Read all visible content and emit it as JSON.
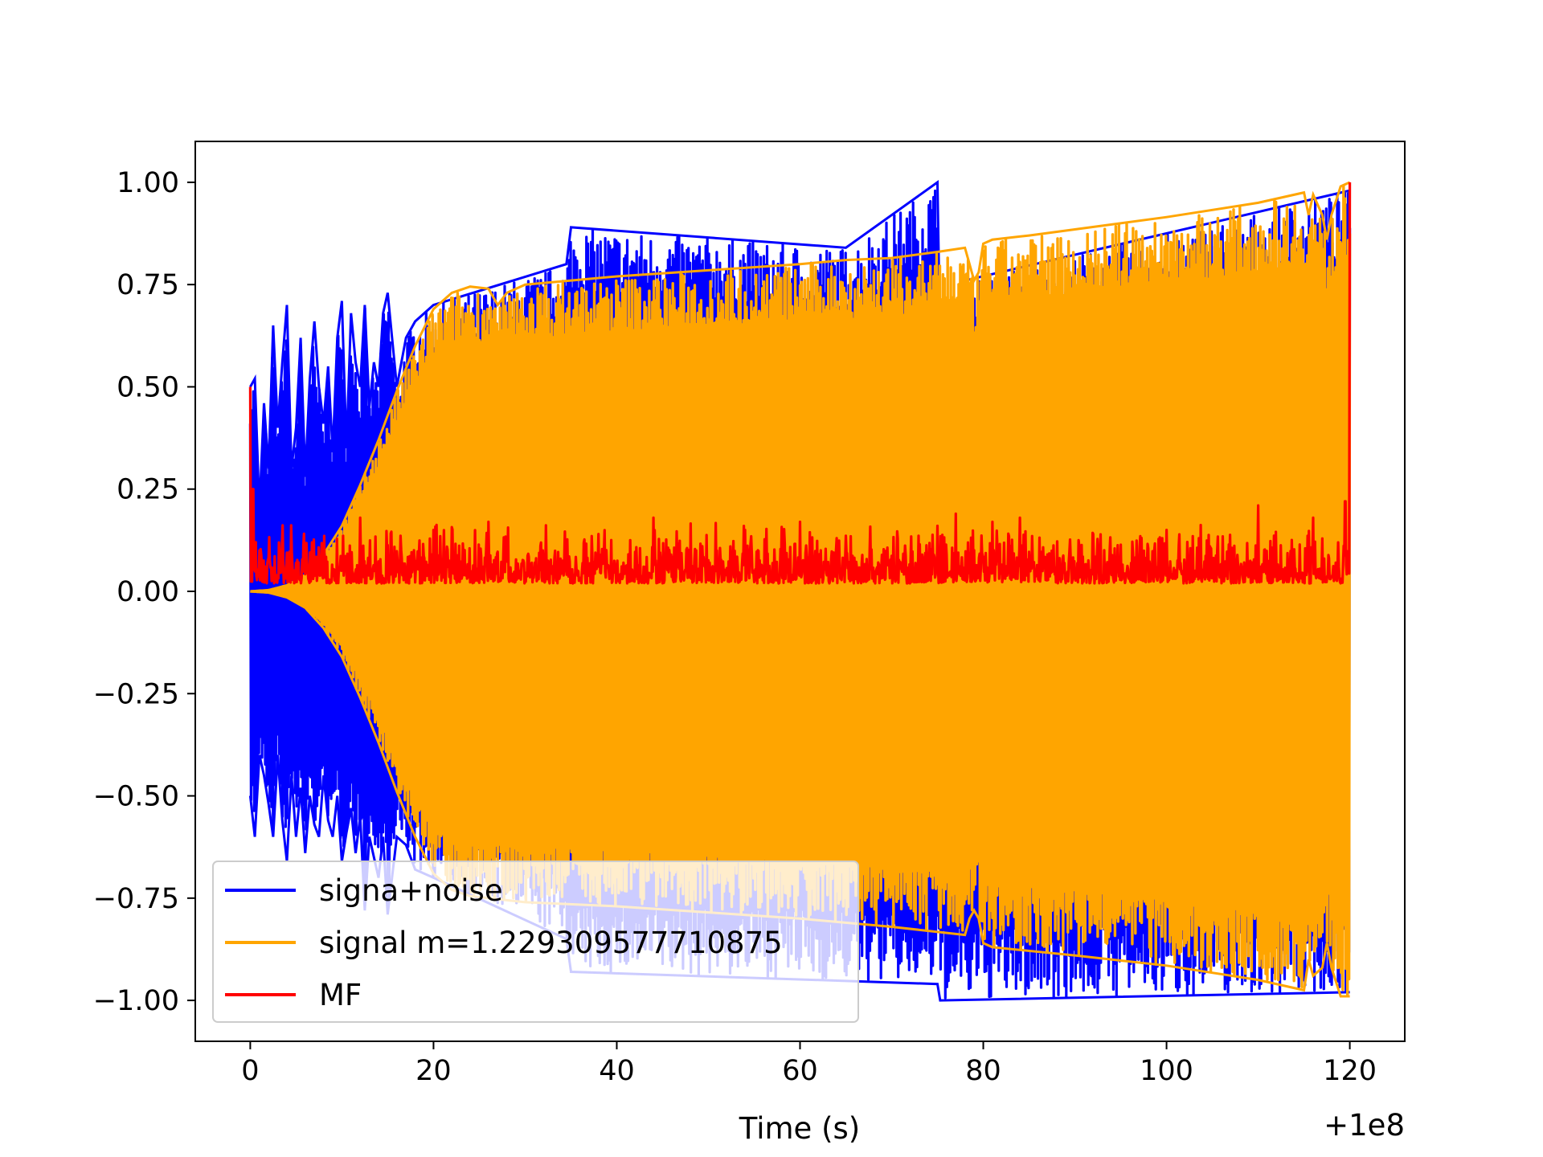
{
  "chart_data": {
    "type": "line",
    "title": "",
    "xlabel": "Time (s)",
    "ylabel": "",
    "x_offset_label": "+1e8",
    "xlim": [
      -6,
      126
    ],
    "ylim": [
      -1.1,
      1.1
    ],
    "x_ticks": [
      {
        "value": 0,
        "label": "0"
      },
      {
        "value": 20,
        "label": "20"
      },
      {
        "value": 40,
        "label": "40"
      },
      {
        "value": 60,
        "label": "60"
      },
      {
        "value": 80,
        "label": "80"
      },
      {
        "value": 100,
        "label": "100"
      },
      {
        "value": 120,
        "label": "120"
      }
    ],
    "y_ticks": [
      {
        "value": 1.0,
        "label": "1.00"
      },
      {
        "value": 0.75,
        "label": "0.75"
      },
      {
        "value": 0.5,
        "label": "0.50"
      },
      {
        "value": 0.25,
        "label": "0.25"
      },
      {
        "value": 0.0,
        "label": "0.00"
      },
      {
        "value": -0.25,
        "label": "−0.25"
      },
      {
        "value": -0.5,
        "label": "−0.50"
      },
      {
        "value": -0.75,
        "label": "−0.75"
      },
      {
        "value": -1.0,
        "label": "−1.00"
      }
    ],
    "grid": false,
    "legend_position": "lower-left",
    "series": [
      {
        "name": "signa+noise",
        "color": "#0000ff",
        "envelope_upper": {
          "x": [
            0,
            0.5,
            1,
            1.5,
            2,
            2.5,
            3,
            3.5,
            4,
            4.5,
            5,
            5.5,
            6,
            6.5,
            7,
            7.5,
            8,
            8.5,
            9,
            9.5,
            10,
            10.5,
            11,
            11.5,
            12,
            12.5,
            13,
            13.5,
            14,
            14.5,
            15,
            16,
            17,
            18,
            20,
            34.5,
            35,
            65,
            75,
            75.3,
            78,
            120
          ],
          "y": [
            0.5,
            0.52,
            0.2,
            0.46,
            0.3,
            0.65,
            0.4,
            0.56,
            0.7,
            0.3,
            0.4,
            0.62,
            0.28,
            0.52,
            0.66,
            0.5,
            0.41,
            0.55,
            0.34,
            0.62,
            0.71,
            0.35,
            0.68,
            0.56,
            0.5,
            0.7,
            0.45,
            0.56,
            0.5,
            0.68,
            0.73,
            0.5,
            0.62,
            0.66,
            0.7,
            0.8,
            0.89,
            0.84,
            1.0,
            0.6,
            0.76,
            0.98
          ]
        },
        "envelope_lower": {
          "x": [
            0,
            0.5,
            1,
            1.5,
            2,
            2.5,
            3,
            3.5,
            4,
            4.5,
            5,
            5.5,
            6,
            6.5,
            7,
            7.5,
            8,
            8.5,
            9,
            9.5,
            10,
            10.5,
            11,
            11.5,
            12,
            12.5,
            13,
            13.5,
            14,
            14.5,
            15,
            16,
            17,
            18,
            20,
            34.5,
            35,
            75,
            75.3,
            120
          ],
          "y": [
            -0.5,
            -0.6,
            -0.4,
            -0.45,
            -0.52,
            -0.6,
            -0.4,
            -0.56,
            -0.66,
            -0.45,
            -0.6,
            -0.48,
            -0.64,
            -0.5,
            -0.57,
            -0.6,
            -0.45,
            -0.56,
            -0.6,
            -0.5,
            -0.66,
            -0.59,
            -0.53,
            -0.64,
            -0.55,
            -0.78,
            -0.6,
            -0.65,
            -0.7,
            -0.6,
            -0.79,
            -0.6,
            -0.62,
            -0.68,
            -0.7,
            -0.85,
            -0.93,
            -0.96,
            -1.0,
            -0.98
          ]
        }
      },
      {
        "name": "signal m=1.229309577710875",
        "color": "#ffa500",
        "envelope_upper": {
          "x": [
            0,
            2,
            4,
            6,
            8,
            10,
            12,
            14,
            16,
            18,
            20,
            22,
            24,
            26,
            27,
            28,
            30,
            35,
            40,
            50,
            60,
            65,
            70,
            75,
            78,
            78.5,
            79,
            79.5,
            80,
            81,
            85,
            90,
            100,
            110,
            115,
            115.5,
            116,
            117,
            117.5,
            118,
            119,
            120
          ],
          "y": [
            0.0,
            0.003,
            0.015,
            0.04,
            0.09,
            0.16,
            0.26,
            0.37,
            0.49,
            0.6,
            0.69,
            0.73,
            0.745,
            0.74,
            0.7,
            0.73,
            0.75,
            0.76,
            0.77,
            0.785,
            0.8,
            0.81,
            0.815,
            0.83,
            0.84,
            0.8,
            0.76,
            0.78,
            0.85,
            0.86,
            0.87,
            0.885,
            0.915,
            0.95,
            0.975,
            0.92,
            0.97,
            0.92,
            0.86,
            0.92,
            0.99,
            1.0
          ]
        },
        "envelope_lower": {
          "x": [
            0,
            2,
            4,
            6,
            8,
            10,
            12,
            14,
            16,
            18,
            20,
            22,
            24,
            26,
            30,
            40,
            50,
            60,
            70,
            78,
            78.5,
            79,
            79.5,
            80,
            81,
            90,
            100,
            110,
            115,
            115.5,
            116,
            117,
            117.5,
            118,
            119,
            120
          ],
          "y": [
            0.0,
            -0.003,
            -0.015,
            -0.04,
            -0.09,
            -0.16,
            -0.26,
            -0.37,
            -0.49,
            -0.6,
            -0.69,
            -0.73,
            -0.745,
            -0.75,
            -0.76,
            -0.77,
            -0.785,
            -0.8,
            -0.82,
            -0.84,
            -0.8,
            -0.78,
            -0.8,
            -0.86,
            -0.87,
            -0.89,
            -0.915,
            -0.95,
            -0.975,
            -0.9,
            -0.94,
            -0.92,
            -0.86,
            -0.92,
            -0.99,
            -0.99
          ]
        }
      },
      {
        "name": "MF",
        "color": "#ff0000",
        "baseline_range": [
          0.0,
          0.13
        ],
        "peaks": {
          "x": [
            0,
            0.3,
            0.6,
            1,
            12,
            20,
            26,
            38,
            44,
            54,
            60,
            64,
            75,
            77,
            81,
            84,
            92,
            100,
            110,
            116,
            119.5,
            120
          ],
          "y": [
            0.5,
            0.25,
            0.12,
            0.1,
            0.18,
            0.15,
            0.17,
            0.14,
            0.18,
            0.15,
            0.17,
            0.13,
            0.16,
            0.19,
            0.17,
            0.18,
            0.14,
            0.15,
            0.21,
            0.18,
            0.22,
            1.0
          ]
        }
      }
    ]
  }
}
